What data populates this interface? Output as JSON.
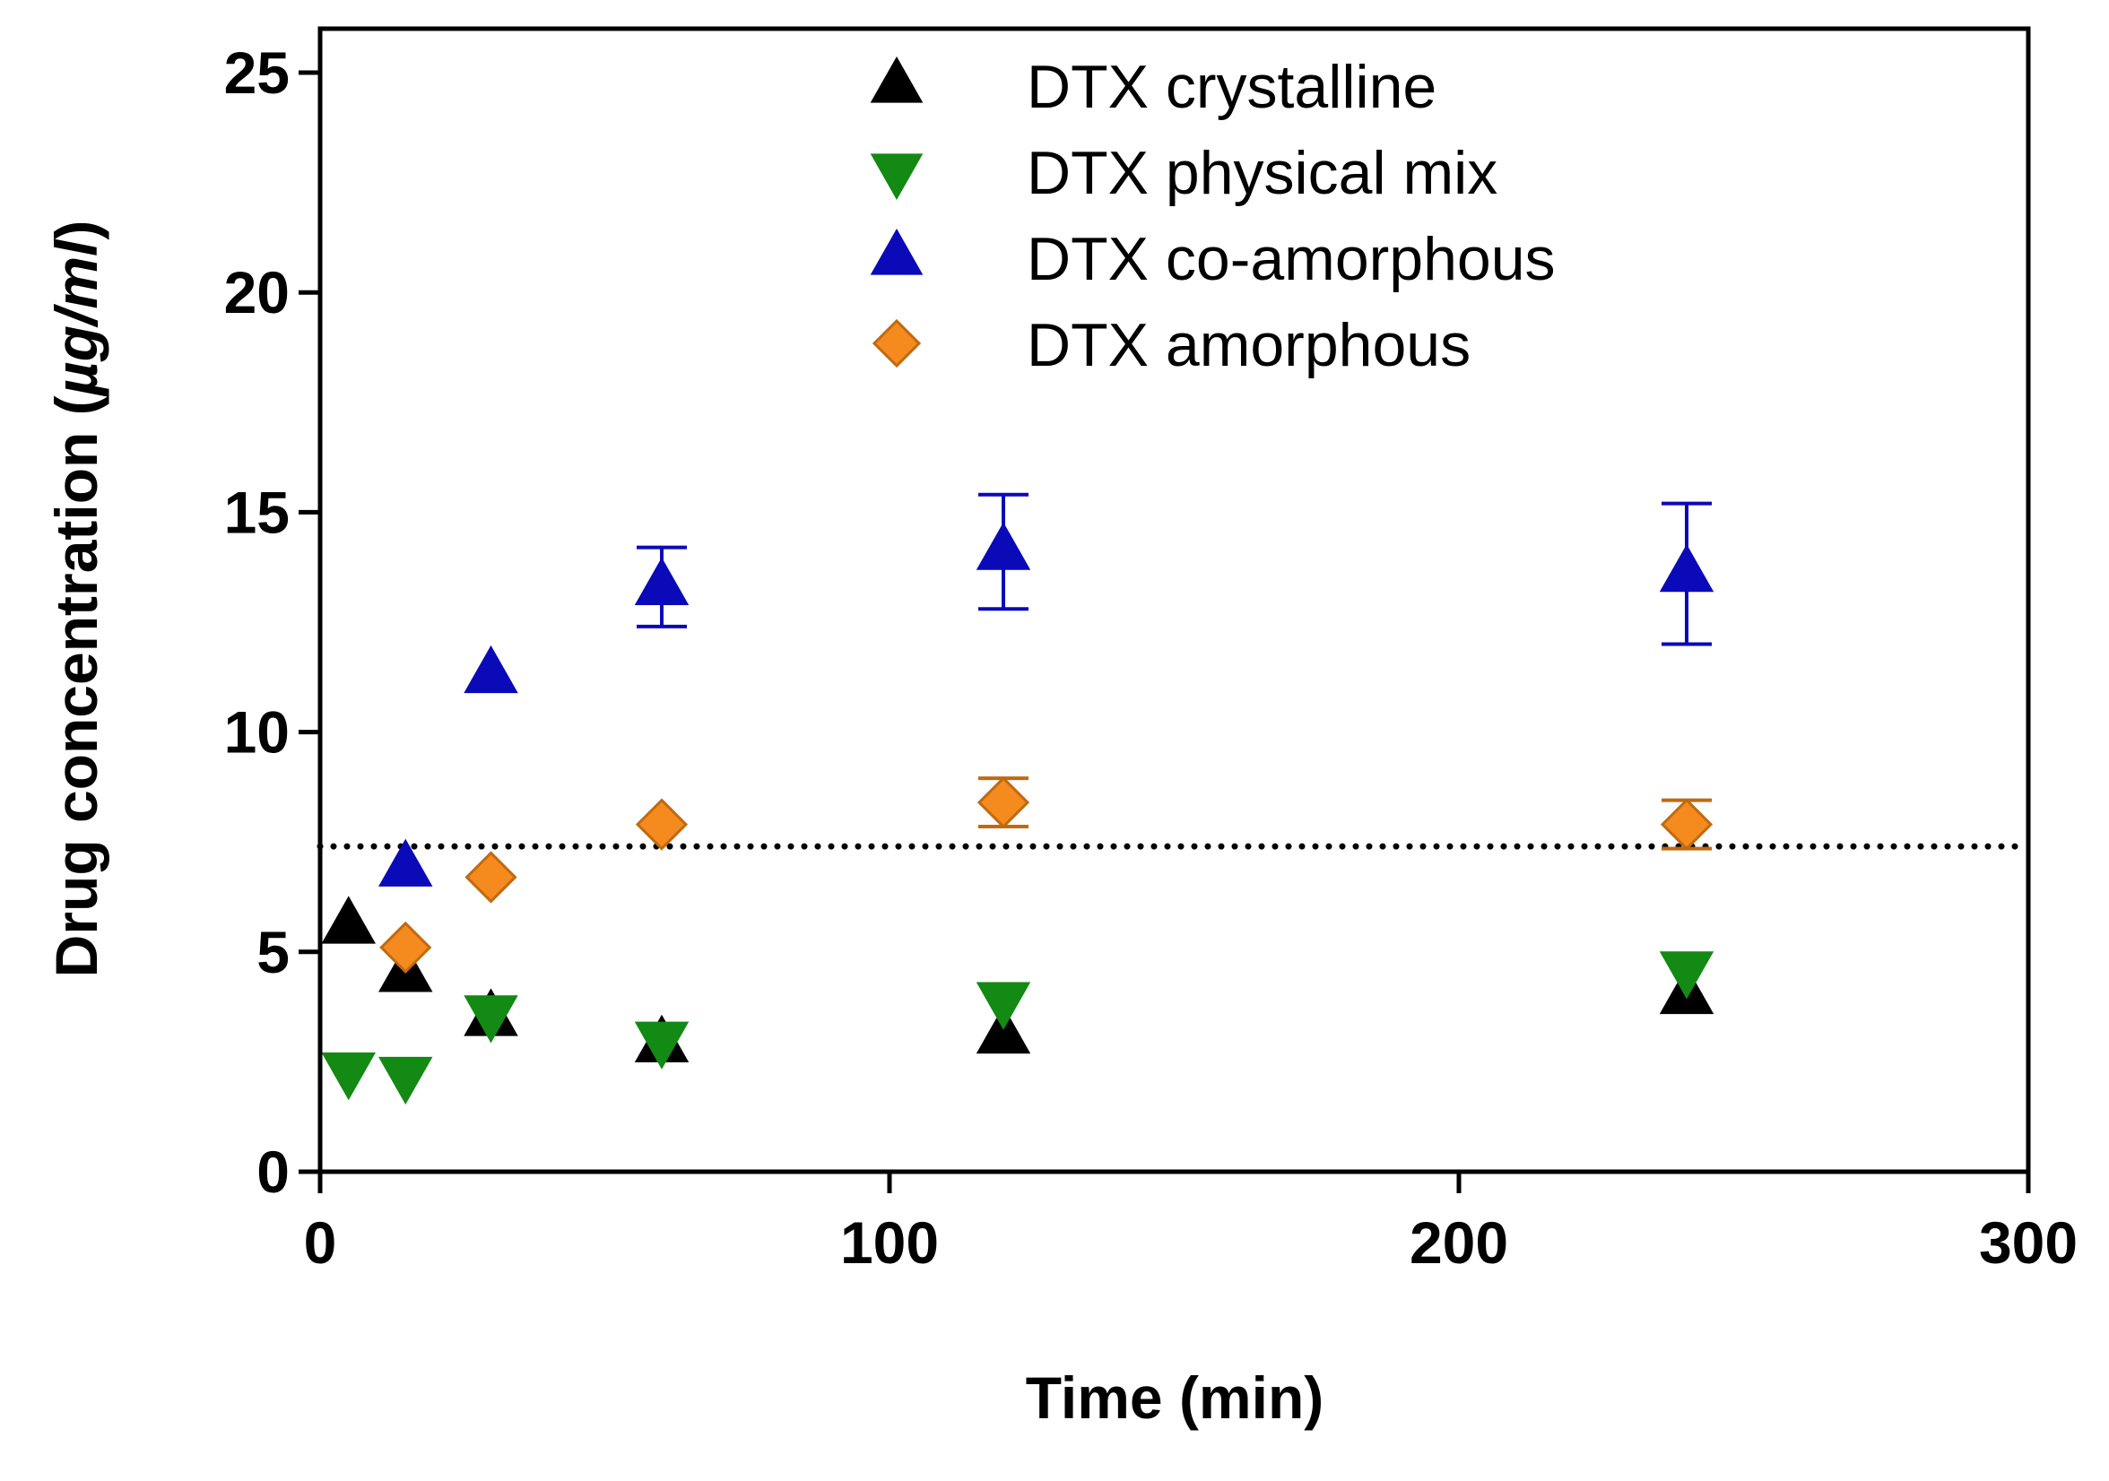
{
  "chart_data": {
    "type": "scatter",
    "title": "",
    "xlabel": "Time (min)",
    "ylabel_main": "Drug concentration (",
    "ylabel_unit": "µg/ml",
    "ylabel_close": ")",
    "xlim": [
      0,
      300
    ],
    "ylim": [
      0,
      26
    ],
    "xticks": [
      0,
      100,
      200,
      300
    ],
    "yticks": [
      0,
      5,
      10,
      15,
      20,
      25
    ],
    "xtick_labels": [
      "0",
      "100",
      "200",
      "300"
    ],
    "ytick_labels": [
      "0",
      "5",
      "10",
      "15",
      "20",
      "25"
    ],
    "grid": false,
    "legend_position": "top-center",
    "reference_line": {
      "y": 7.4,
      "style": "dotted",
      "color": "#000000"
    },
    "series": [
      {
        "name": "DTX crystalline",
        "marker": "triangle-up",
        "color": "#000000",
        "stroke": "#000000",
        "points": [
          {
            "x": 5,
            "y": 5.6,
            "err": 0
          },
          {
            "x": 15,
            "y": 4.5,
            "err": 0
          },
          {
            "x": 30,
            "y": 3.5,
            "err": 0
          },
          {
            "x": 60,
            "y": 2.9,
            "err": 0
          },
          {
            "x": 120,
            "y": 3.1,
            "err": 0
          },
          {
            "x": 240,
            "y": 4.0,
            "err": 0
          }
        ]
      },
      {
        "name": "DTX physical mix",
        "marker": "triangle-down",
        "color": "#138a13",
        "stroke": "#138a13",
        "points": [
          {
            "x": 5,
            "y": 2.3,
            "err": 0
          },
          {
            "x": 15,
            "y": 2.2,
            "err": 0
          },
          {
            "x": 30,
            "y": 3.6,
            "err": 0
          },
          {
            "x": 60,
            "y": 3.0,
            "err": 0
          },
          {
            "x": 120,
            "y": 3.9,
            "err": 0
          },
          {
            "x": 240,
            "y": 4.6,
            "err": 0
          }
        ]
      },
      {
        "name": "DTX co-amorphous",
        "marker": "triangle-up",
        "color": "#0a0ab8",
        "stroke": "#0a0ab8",
        "points": [
          {
            "x": 15,
            "y": 6.9,
            "err": 0
          },
          {
            "x": 30,
            "y": 11.3,
            "err": 0
          },
          {
            "x": 60,
            "y": 13.3,
            "err": 0.9
          },
          {
            "x": 120,
            "y": 14.1,
            "err": 1.3
          },
          {
            "x": 240,
            "y": 13.6,
            "err": 1.6
          }
        ]
      },
      {
        "name": "DTX amorphous",
        "marker": "diamond",
        "color": "#f58a1f",
        "stroke": "#c06a10",
        "points": [
          {
            "x": 15,
            "y": 5.1,
            "err": 0
          },
          {
            "x": 30,
            "y": 6.7,
            "err": 0
          },
          {
            "x": 60,
            "y": 7.9,
            "err": 0
          },
          {
            "x": 120,
            "y": 8.4,
            "err": 0.55
          },
          {
            "x": 240,
            "y": 7.9,
            "err": 0.55
          }
        ]
      }
    ]
  }
}
